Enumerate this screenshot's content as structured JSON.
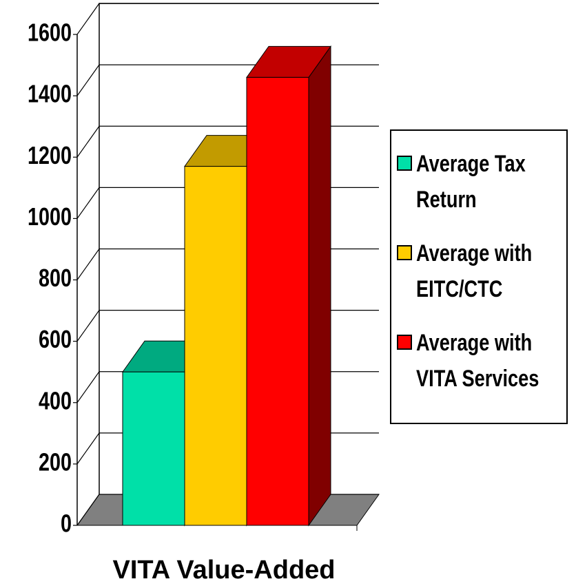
{
  "chart_data": {
    "type": "bar3d",
    "x_label": "VITA Value-Added",
    "series": [
      {
        "name": "Average Tax Return",
        "color": "#00e0a8",
        "values": [
          500
        ]
      },
      {
        "name": "Average with EITC/CTC",
        "color": "#ffcc00",
        "values": [
          1170
        ]
      },
      {
        "name": "Average with VITA Services",
        "color": "#ff0000",
        "values": [
          1460
        ]
      }
    ],
    "ylim": [
      0,
      1600
    ],
    "yticks": [
      0,
      200,
      400,
      600,
      800,
      1000,
      1200,
      1400,
      1600
    ],
    "grid": true,
    "legend": "right"
  }
}
